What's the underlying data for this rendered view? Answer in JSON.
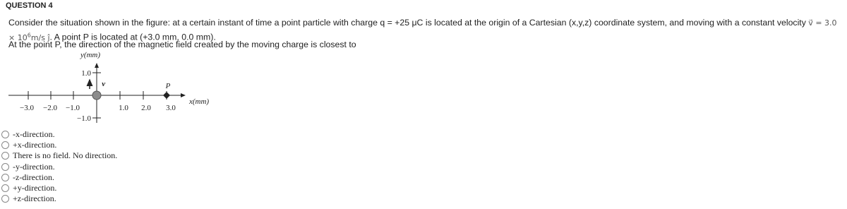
{
  "header": {
    "title": "QUESTION 4"
  },
  "question": {
    "text_start": "Consider the situation shown in the figure: at a certain instant of time a point particle with charge q = +25 μC is located at the origin of a Cartesian (x,y,z) coordinate system, and moving with a constant velocity",
    "velocity_symbol": "v⃗",
    "velocity_value": "= 3.0 × 10",
    "velocity_exponent": "6",
    "velocity_unit": "m/s",
    "velocity_direction": "ĵ",
    "text_end": ". A point P is located at (+3.0 mm, 0.0 mm).",
    "prompt": "At the point P, the direction of the magnetic field created by the moving charge is closest to"
  },
  "figure": {
    "y_axis_label": "y(mm)",
    "x_axis_label": "x(mm)",
    "y_tick_labels": [
      "1.0",
      "−1.0"
    ],
    "x_tick_labels": [
      "−3.0",
      "−2.0",
      "−1.0",
      "1.0",
      "2.0",
      "3.0"
    ],
    "velocity_label": "v⃗",
    "point_label": "P"
  },
  "options": [
    "-x-direction.",
    "+x-direction.",
    "There is no field. No direction.",
    "-y-direction.",
    "-z-direction.",
    "+y-direction.",
    "+z-direction."
  ]
}
